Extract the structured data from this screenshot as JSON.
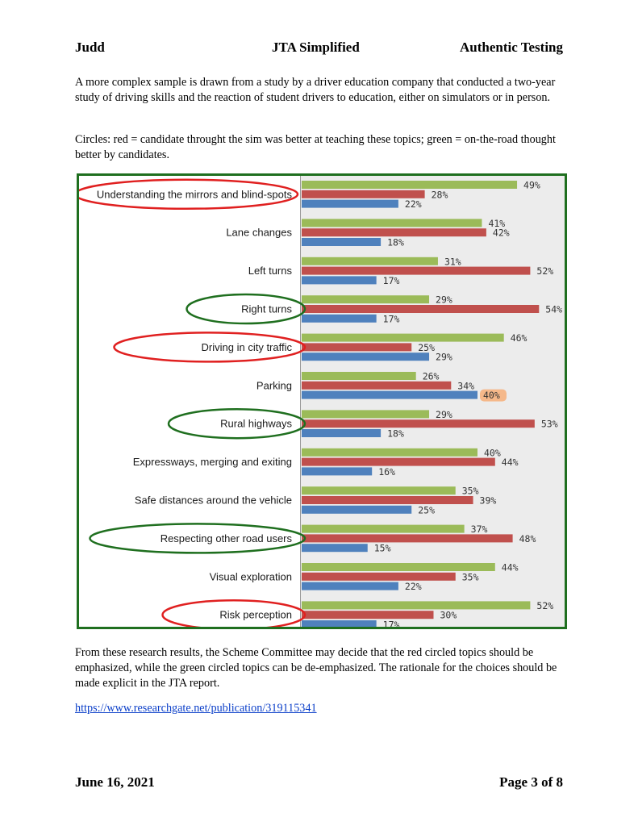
{
  "header": {
    "left": "Judd",
    "center": "JTA Simplified",
    "right": "Authentic Testing"
  },
  "paragraphs": {
    "intro": "A more complex sample is drawn from a study by a driver education company that conducted a two-year study of driving skills and the reaction of student drivers to education, either on simulators or in person.",
    "circles": "Circles:  red = candidate throught the sim was better at teaching these topics;  green = on-the-road thought better by candidates.",
    "conclusion": "From these research results, the Scheme Committee may decide that the red circled topics should be emphasized, while the green circled topics can be de-emphasized.  The rationale for the choices should be made explicit in the JTA report."
  },
  "link": {
    "text": "https://www.researchgate.net/publication/319115341"
  },
  "footer": {
    "left": "June 16, 2021",
    "right": "Page 3 of 8"
  },
  "colors": {
    "green": "#9bbb59",
    "red": "#c0504d",
    "blue": "#4f81bd",
    "circle_red": "#e02020",
    "circle_green": "#1f6f1f",
    "highlight": "#f5b88a"
  },
  "chart_data": {
    "type": "bar",
    "orientation": "horizontal",
    "categories": [
      "Understanding the mirrors and blind-spots",
      "Lane changes",
      "Left turns",
      "Right turns",
      "Driving in city traffic",
      "Parking",
      "Rural highways",
      "Expressways, merging and exiting",
      "Safe distances around the vehicle",
      "Respecting other road users",
      "Visual exploration",
      "Risk perception"
    ],
    "series": [
      {
        "color": "#9bbb59",
        "values": [
          49,
          41,
          31,
          29,
          46,
          26,
          29,
          40,
          35,
          37,
          44,
          52
        ]
      },
      {
        "color": "#c0504d",
        "values": [
          28,
          42,
          52,
          54,
          25,
          34,
          53,
          44,
          39,
          48,
          35,
          30
        ]
      },
      {
        "color": "#4f81bd",
        "values": [
          22,
          18,
          17,
          17,
          29,
          40,
          18,
          16,
          25,
          15,
          22,
          17
        ]
      }
    ],
    "value_suffix": "%",
    "circles": {
      "red": [
        0,
        4,
        11
      ],
      "green": [
        3,
        6,
        9
      ]
    },
    "highlighted_label": {
      "category": 5,
      "series": 2
    }
  }
}
